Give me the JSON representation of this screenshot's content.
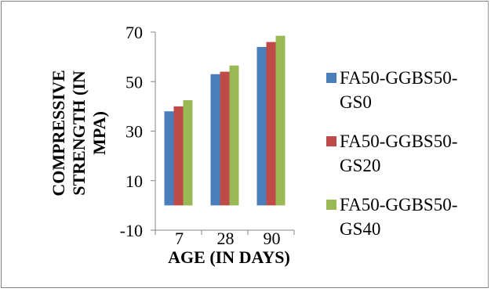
{
  "chart_data": {
    "type": "bar",
    "categories": [
      "7",
      "28",
      "90"
    ],
    "series": [
      {
        "name": "FA50-GGBS50-GS0",
        "values": [
          38,
          53,
          64
        ],
        "color": "#4a7ebb"
      },
      {
        "name": "FA50-GGBS50-GS20",
        "values": [
          40,
          54,
          66
        ],
        "color": "#be4b48"
      },
      {
        "name": "FA50-GGBS50-GS40",
        "values": [
          42.5,
          56.5,
          68.5
        ],
        "color": "#98b954"
      }
    ],
    "title": "",
    "xlabel": "AGE (IN DAYS)",
    "ylabel": "COMPRESSIVE STRENGTH (IN MPA)",
    "ylabel_lines": [
      "COMPRESSIVE",
      "STRENGTH (IN",
      "MPA)"
    ],
    "ylim": [
      -10,
      70
    ],
    "yticks": [
      -10,
      10,
      30,
      50,
      70
    ],
    "grid": false,
    "legend": {
      "position": "right",
      "entries": [
        {
          "lines": [
            "FA50-GGBS50-",
            "GS0"
          ]
        },
        {
          "lines": [
            "FA50-GGBS50-",
            "GS20"
          ]
        },
        {
          "lines": [
            "FA50-GGBS50-",
            "GS40"
          ]
        }
      ]
    }
  }
}
